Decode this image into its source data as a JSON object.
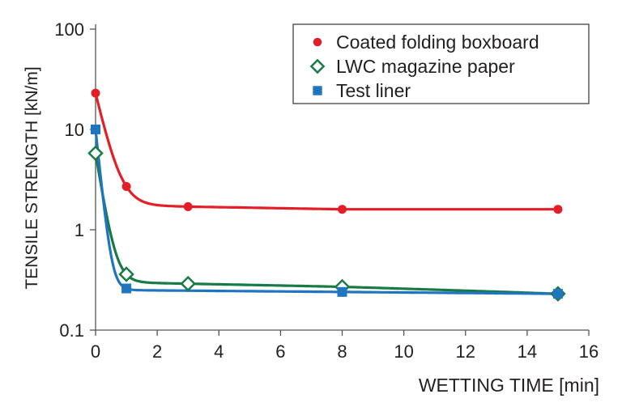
{
  "chart_data": {
    "type": "line",
    "title": "",
    "xlabel": "WETTING TIME [min]",
    "ylabel": "TENSILE STRENGTH [kN/m]",
    "xlim": [
      0,
      16
    ],
    "ylim": [
      0.1,
      100
    ],
    "yscale": "log",
    "xticks": [
      0,
      2,
      4,
      6,
      8,
      10,
      12,
      14,
      16
    ],
    "yticks": [
      0.1,
      1,
      10,
      100
    ],
    "ytick_labels": [
      "0.1",
      "1",
      "10",
      "100"
    ],
    "legend_position": "top-right",
    "series": [
      {
        "name": "Coated folding boxboard",
        "color": "#e31e26",
        "marker": "circle",
        "x": [
          0,
          1,
          3,
          8,
          15
        ],
        "y": [
          23,
          2.7,
          1.7,
          1.6,
          1.6
        ]
      },
      {
        "name": "LWC magazine paper",
        "color": "#1a7a45",
        "marker": "diamond-open",
        "x": [
          0,
          1,
          3,
          8,
          15
        ],
        "y": [
          5.8,
          0.36,
          0.29,
          0.27,
          0.23
        ]
      },
      {
        "name": "Test liner",
        "color": "#1f75c0",
        "marker": "square",
        "x": [
          0,
          1,
          8,
          15
        ],
        "y": [
          10,
          0.26,
          0.24,
          0.23
        ]
      }
    ]
  }
}
